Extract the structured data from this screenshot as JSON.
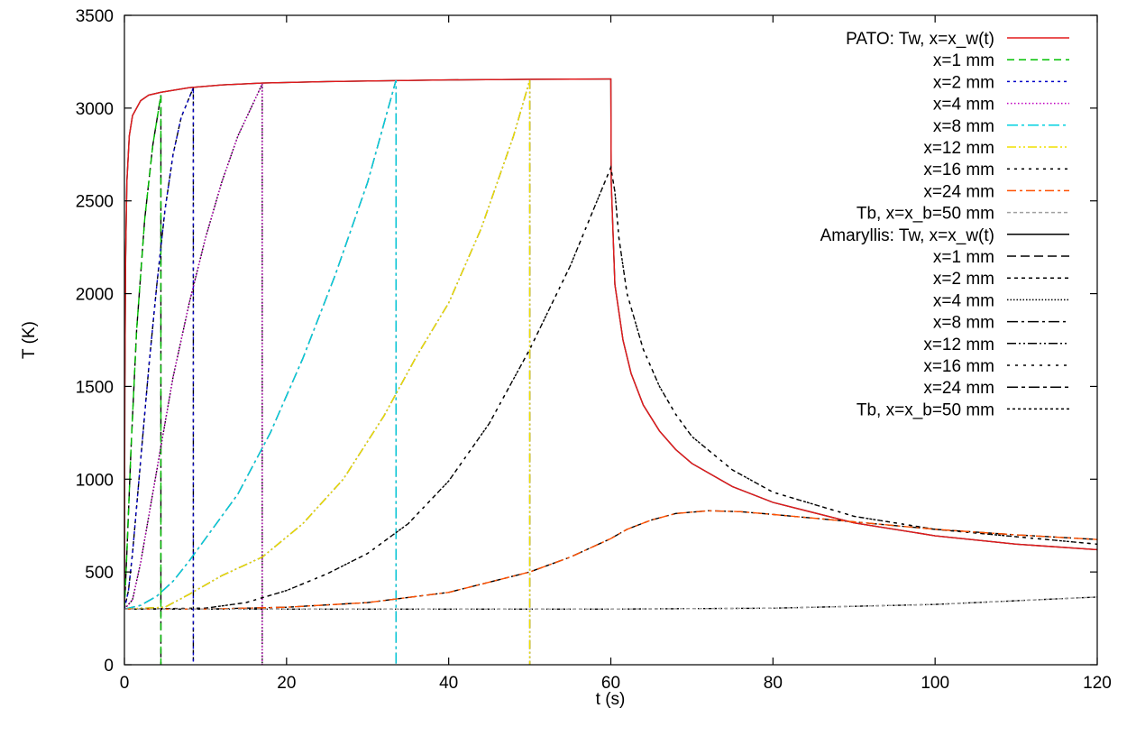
{
  "chart_data": {
    "type": "line",
    "title": "",
    "xlabel": "t (s)",
    "ylabel": "T (K)",
    "xlim": [
      0,
      120
    ],
    "ylim": [
      0,
      3500
    ],
    "xticks": [
      "0",
      "20",
      "40",
      "60",
      "80",
      "100",
      "120"
    ],
    "yticks": [
      "0",
      "500",
      "1000",
      "1500",
      "2000",
      "2500",
      "3000",
      "3500"
    ],
    "grid": false,
    "legend_position": "top-right",
    "series": [
      {
        "name": "PATO: Tw, x=x_w(t)",
        "color": "#e41a1c",
        "dash": "solid",
        "points": [
          [
            0,
            300
          ],
          [
            0.05,
            1500
          ],
          [
            0.15,
            2200
          ],
          [
            0.3,
            2600
          ],
          [
            0.6,
            2850
          ],
          [
            1,
            2960
          ],
          [
            2,
            3040
          ],
          [
            3,
            3070
          ],
          [
            4.5,
            3085
          ],
          [
            8,
            3110
          ],
          [
            12,
            3125
          ],
          [
            17,
            3135
          ],
          [
            25,
            3143
          ],
          [
            33,
            3148
          ],
          [
            40,
            3152
          ],
          [
            50,
            3155
          ],
          [
            59.9,
            3157
          ],
          [
            60,
            3157
          ],
          [
            60.05,
            2600
          ],
          [
            60.5,
            2050
          ],
          [
            61.5,
            1750
          ],
          [
            62.5,
            1570
          ],
          [
            64,
            1400
          ],
          [
            66,
            1260
          ],
          [
            68,
            1160
          ],
          [
            70,
            1085
          ],
          [
            75,
            960
          ],
          [
            80,
            875
          ],
          [
            90,
            765
          ],
          [
            100,
            695
          ],
          [
            110,
            650
          ],
          [
            120,
            620
          ]
        ]
      },
      {
        "name": "x=1 mm",
        "color": "#00c000",
        "dash": "8,5",
        "points": [
          [
            0,
            300
          ],
          [
            0.3,
            600
          ],
          [
            0.8,
            1150
          ],
          [
            1.5,
            1800
          ],
          [
            2.5,
            2400
          ],
          [
            3.5,
            2800
          ],
          [
            4.5,
            3070
          ],
          [
            4.5,
            0
          ]
        ]
      },
      {
        "name": "x=2 mm",
        "color": "#0000c8",
        "dash": "3,4",
        "points": [
          [
            0,
            300
          ],
          [
            0.5,
            400
          ],
          [
            1,
            600
          ],
          [
            2,
            1100
          ],
          [
            3,
            1600
          ],
          [
            4,
            2050
          ],
          [
            5,
            2450
          ],
          [
            6,
            2750
          ],
          [
            7,
            2950
          ],
          [
            8.5,
            3110
          ],
          [
            8.5,
            0
          ]
        ]
      },
      {
        "name": "x=4 mm",
        "color": "#c000c0",
        "dash": "1.5,2.5",
        "points": [
          [
            0,
            300
          ],
          [
            1,
            350
          ],
          [
            2,
            550
          ],
          [
            3,
            800
          ],
          [
            4,
            1050
          ],
          [
            6,
            1550
          ],
          [
            8,
            1950
          ],
          [
            10,
            2300
          ],
          [
            12,
            2600
          ],
          [
            14,
            2850
          ],
          [
            17,
            3130
          ],
          [
            17,
            0
          ]
        ]
      },
      {
        "name": "x=8 mm",
        "color": "#00d0e0",
        "dash": "12,4,3,4",
        "points": [
          [
            0,
            300
          ],
          [
            2,
            320
          ],
          [
            4,
            370
          ],
          [
            6,
            450
          ],
          [
            8,
            560
          ],
          [
            10,
            680
          ],
          [
            14,
            920
          ],
          [
            18,
            1250
          ],
          [
            22,
            1650
          ],
          [
            26,
            2100
          ],
          [
            30,
            2600
          ],
          [
            33.5,
            3150
          ],
          [
            33.5,
            0
          ]
        ]
      },
      {
        "name": "x=12 mm",
        "color": "#f0e000",
        "dash": "10,3,2,3,2,3",
        "points": [
          [
            0,
            300
          ],
          [
            5,
            310
          ],
          [
            8,
            380
          ],
          [
            12,
            480
          ],
          [
            17,
            580
          ],
          [
            22,
            760
          ],
          [
            27,
            1000
          ],
          [
            32,
            1340
          ],
          [
            36,
            1660
          ],
          [
            40,
            1950
          ],
          [
            44,
            2350
          ],
          [
            48,
            2850
          ],
          [
            50,
            3150
          ],
          [
            50,
            0
          ]
        ]
      },
      {
        "name": "x=16 mm",
        "color": "#000000",
        "dash": "3,5",
        "points": [
          [
            0,
            300
          ],
          [
            10,
            305
          ],
          [
            15,
            335
          ],
          [
            20,
            400
          ],
          [
            25,
            490
          ],
          [
            30,
            600
          ],
          [
            35,
            760
          ],
          [
            40,
            990
          ],
          [
            45,
            1300
          ],
          [
            50,
            1700
          ],
          [
            55,
            2150
          ],
          [
            60,
            2680
          ],
          [
            60.5,
            2550
          ],
          [
            61,
            2300
          ],
          [
            62,
            2000
          ],
          [
            64,
            1700
          ],
          [
            66,
            1500
          ],
          [
            68,
            1350
          ],
          [
            70,
            1230
          ],
          [
            75,
            1050
          ],
          [
            80,
            930
          ],
          [
            90,
            800
          ],
          [
            100,
            730
          ],
          [
            110,
            690
          ],
          [
            120,
            650
          ]
        ]
      },
      {
        "name": "x=24 mm",
        "color": "#ff5000",
        "dash": "10,4,3,4",
        "points": [
          [
            0,
            300
          ],
          [
            10,
            300
          ],
          [
            20,
            310
          ],
          [
            30,
            335
          ],
          [
            40,
            390
          ],
          [
            50,
            500
          ],
          [
            55,
            580
          ],
          [
            60,
            680
          ],
          [
            62,
            730
          ],
          [
            65,
            780
          ],
          [
            68,
            815
          ],
          [
            72,
            830
          ],
          [
            76,
            825
          ],
          [
            80,
            810
          ],
          [
            90,
            770
          ],
          [
            100,
            730
          ],
          [
            110,
            700
          ],
          [
            120,
            675
          ]
        ]
      },
      {
        "name": "Tb, x=x_b=50 mm",
        "color": "#a0a0a0",
        "dash": "4,3",
        "points": [
          [
            0,
            300
          ],
          [
            40,
            300
          ],
          [
            60,
            300
          ],
          [
            80,
            305
          ],
          [
            100,
            325
          ],
          [
            120,
            365
          ]
        ]
      },
      {
        "name": "Amaryllis: Tw, x=x_w(t)",
        "color": "#000000",
        "dash": "solid",
        "points": []
      },
      {
        "name": "x=1 mm",
        "color": "#000000",
        "dash": "10,5",
        "points": []
      },
      {
        "name": "x=2 mm",
        "color": "#000000",
        "dash": "4,4",
        "points": []
      },
      {
        "name": "x=4 mm",
        "color": "#000000",
        "dash": "1.5,2",
        "points": []
      },
      {
        "name": "x=8 mm",
        "color": "#000000",
        "dash": "12,4,3,4",
        "points": []
      },
      {
        "name": "x=12 mm",
        "color": "#000000",
        "dash": "10,3,2,3,2,3",
        "points": []
      },
      {
        "name": "x=16 mm",
        "color": "#000000",
        "dash": "3,6",
        "points": []
      },
      {
        "name": "x=24 mm",
        "color": "#000000",
        "dash": "12,4,4,4",
        "points": []
      },
      {
        "name": "Tb, x=x_b=50 mm",
        "color": "#000000",
        "dash": "3,3",
        "points": []
      }
    ]
  }
}
